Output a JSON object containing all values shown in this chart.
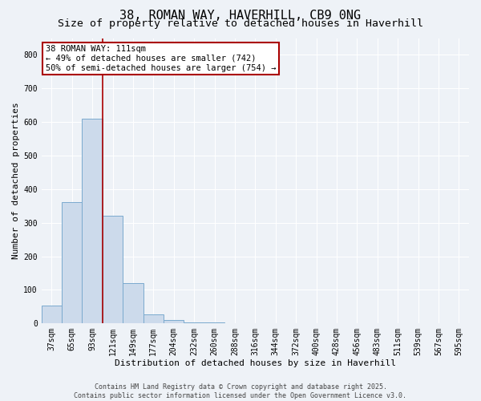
{
  "title": "38, ROMAN WAY, HAVERHILL, CB9 0NG",
  "subtitle": "Size of property relative to detached houses in Haverhill",
  "xlabel": "Distribution of detached houses by size in Haverhill",
  "ylabel": "Number of detached properties",
  "bar_color": "#ccdaeb",
  "bar_edge_color": "#7aaace",
  "categories": [
    "37sqm",
    "65sqm",
    "93sqm",
    "121sqm",
    "149sqm",
    "177sqm",
    "204sqm",
    "232sqm",
    "260sqm",
    "288sqm",
    "316sqm",
    "344sqm",
    "372sqm",
    "400sqm",
    "428sqm",
    "456sqm",
    "483sqm",
    "511sqm",
    "539sqm",
    "567sqm",
    "595sqm"
  ],
  "values": [
    52,
    362,
    610,
    320,
    120,
    28,
    10,
    4,
    2,
    1,
    1,
    0,
    0,
    0,
    0,
    0,
    0,
    0,
    0,
    0,
    0
  ],
  "ylim": [
    0,
    850
  ],
  "yticks": [
    0,
    100,
    200,
    300,
    400,
    500,
    600,
    700,
    800
  ],
  "vline_x": 2.5,
  "vline_color": "#aa0000",
  "annotation_text": "38 ROMAN WAY: 111sqm\n← 49% of detached houses are smaller (742)\n50% of semi-detached houses are larger (754) →",
  "annotation_box_edgecolor": "#aa0000",
  "annotation_text_color": "#000000",
  "footnote": "Contains HM Land Registry data © Crown copyright and database right 2025.\nContains public sector information licensed under the Open Government Licence v3.0.",
  "background_color": "#eef2f7",
  "grid_color": "#ffffff",
  "title_fontsize": 11,
  "subtitle_fontsize": 9.5,
  "xlabel_fontsize": 8,
  "ylabel_fontsize": 8,
  "tick_fontsize": 7,
  "annot_fontsize": 7.5,
  "footnote_fontsize": 6
}
